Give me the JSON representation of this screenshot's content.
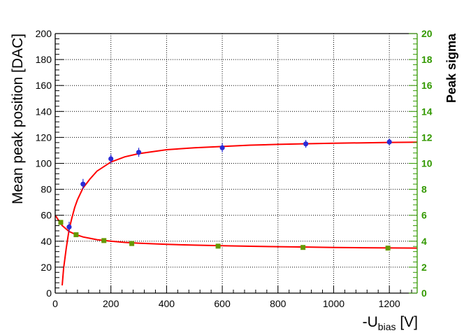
{
  "chart_data": {
    "type": "scatter",
    "x_axis": {
      "label_main": "-U",
      "label_subscript": "bias",
      "label_unit": " [V]",
      "xlim": [
        0,
        1300
      ],
      "ticks": [
        0,
        200,
        400,
        600,
        800,
        1000,
        1200
      ]
    },
    "y_axis_left": {
      "label": "Mean peak position [DAC]",
      "ylim": [
        0,
        200
      ],
      "ticks": [
        0,
        20,
        40,
        60,
        80,
        100,
        120,
        140,
        160,
        180,
        200
      ],
      "color": "#000000"
    },
    "y_axis_right": {
      "label": "Peak sigma",
      "ylim": [
        0,
        20
      ],
      "ticks": [
        0,
        2,
        4,
        6,
        8,
        10,
        12,
        14,
        16,
        18,
        20
      ],
      "color": "#339900"
    },
    "grid": true,
    "series": [
      {
        "axis": "left",
        "marker": "circle",
        "color": "#2b2bd6",
        "points": [
          {
            "x": 50,
            "y": 51,
            "err": 4
          },
          {
            "x": 100,
            "y": 84,
            "err": 4
          },
          {
            "x": 200,
            "y": 103.5,
            "err": 3.5
          },
          {
            "x": 300,
            "y": 108.5,
            "err": 3.5
          },
          {
            "x": 600,
            "y": 112,
            "err": 3.5
          },
          {
            "x": 900,
            "y": 115,
            "err": 3
          },
          {
            "x": 1200,
            "y": 116.5,
            "err": 2.5
          }
        ],
        "fit": {
          "color": "#ff0000",
          "x": [
            25,
            30,
            40,
            50,
            60,
            70,
            80,
            100,
            125,
            150,
            200,
            250,
            300,
            400,
            500,
            600,
            700,
            800,
            900,
            1000,
            1100,
            1200,
            1300
          ],
          "y": [
            6,
            19,
            35,
            49,
            58,
            66,
            72,
            81,
            88,
            94,
            101,
            105,
            107.5,
            110.5,
            112,
            113,
            114,
            114.6,
            115.1,
            115.5,
            115.8,
            116.1,
            116.3
          ]
        }
      },
      {
        "axis": "right",
        "marker": "square",
        "color": "#669900",
        "points": [
          {
            "x": 20,
            "y": 5.45,
            "err": 0.1
          },
          {
            "x": 75,
            "y": 4.5,
            "err": 0.1
          },
          {
            "x": 175,
            "y": 4.05,
            "err": 0.08
          },
          {
            "x": 275,
            "y": 3.82,
            "err": 0.08
          },
          {
            "x": 585,
            "y": 3.62,
            "err": 0.08
          },
          {
            "x": 890,
            "y": 3.52,
            "err": 0.08
          },
          {
            "x": 1195,
            "y": 3.47,
            "err": 0.08
          }
        ],
        "fit": {
          "color": "#ff0000",
          "x": [
            0,
            25,
            50,
            75,
            100,
            150,
            200,
            250,
            300,
            400,
            500,
            600,
            700,
            800,
            900,
            1000,
            1100,
            1200,
            1300
          ],
          "y": [
            6.0,
            5.2,
            4.75,
            4.5,
            4.33,
            4.12,
            4.0,
            3.91,
            3.85,
            3.76,
            3.7,
            3.65,
            3.61,
            3.58,
            3.55,
            3.52,
            3.5,
            3.48,
            3.47
          ]
        }
      }
    ]
  }
}
